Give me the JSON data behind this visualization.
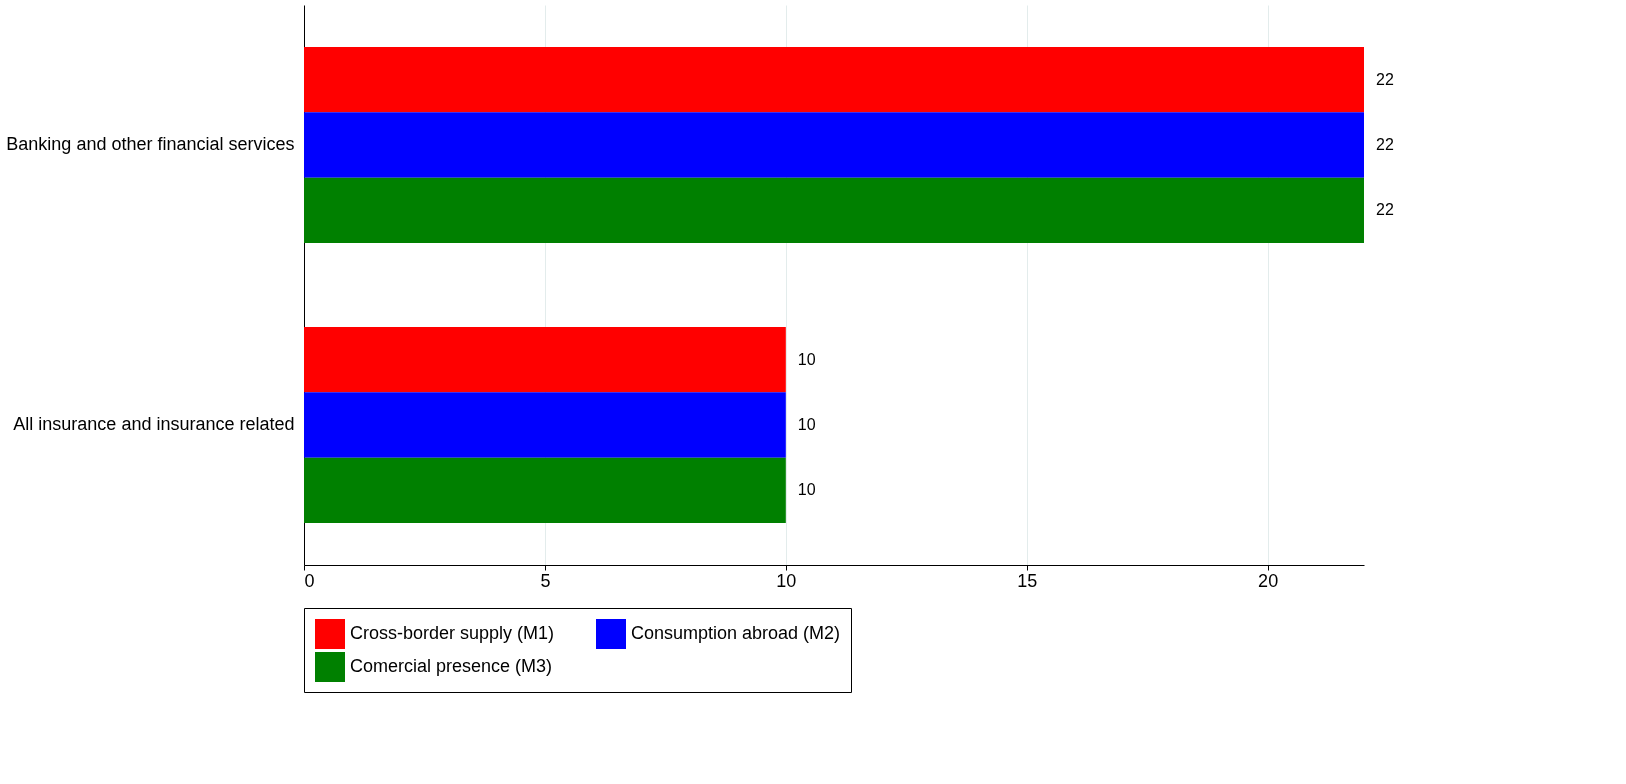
{
  "chart_data": {
    "type": "bar",
    "orientation": "horizontal",
    "categories": [
      "Banking and other financial services",
      "All insurance and insurance related"
    ],
    "series": [
      {
        "name": "Cross-border supply (M1)",
        "color": "#ff0000",
        "values": [
          22,
          10
        ]
      },
      {
        "name": "Consumption abroad (M2)",
        "color": "#0000ff",
        "values": [
          22,
          10
        ]
      },
      {
        "name": "Comercial presence (M3)",
        "color": "#008000",
        "values": [
          22,
          10
        ]
      }
    ],
    "xlim": [
      0,
      22
    ],
    "xticks": [
      0,
      5,
      10,
      15,
      20
    ],
    "grid": "x",
    "legend": "bottom",
    "data_labels": true
  }
}
